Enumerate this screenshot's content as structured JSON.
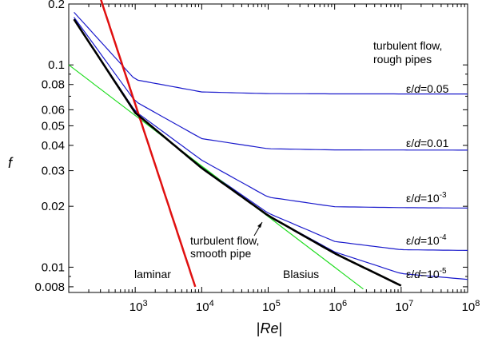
{
  "chart_data": {
    "type": "line",
    "title": "",
    "xlabel_parts": {
      "left": "|",
      "italic": "Re",
      "right": "|"
    },
    "ylabel": "f",
    "xscale": "log",
    "yscale": "log",
    "xlim": [
      100,
      100000000
    ],
    "ylim": [
      0.0075,
      0.2
    ],
    "grid": false,
    "x_tick_labels": [
      {
        "value": 1000,
        "base": "10",
        "exp": "3"
      },
      {
        "value": 10000,
        "base": "10",
        "exp": "4"
      },
      {
        "value": 100000,
        "base": "10",
        "exp": "5"
      },
      {
        "value": 1000000,
        "base": "10",
        "exp": "6"
      },
      {
        "value": 10000000,
        "base": "10",
        "exp": "7"
      },
      {
        "value": 100000000,
        "base": "10",
        "exp": "8"
      }
    ],
    "y_tick_labels": [
      {
        "value": 0.2,
        "label": "0.2"
      },
      {
        "value": 0.1,
        "label": "0.1"
      },
      {
        "value": 0.08,
        "label": "0.08"
      },
      {
        "value": 0.06,
        "label": "0.06"
      },
      {
        "value": 0.05,
        "label": "0.05"
      },
      {
        "value": 0.04,
        "label": "0.04"
      },
      {
        "value": 0.03,
        "label": "0.03"
      },
      {
        "value": 0.02,
        "label": "0.02"
      },
      {
        "value": 0.01,
        "label": "0.01"
      },
      {
        "value": 0.008,
        "label": "0.008"
      }
    ],
    "series": [
      {
        "key": "laminar",
        "color": "#e01010",
        "formula": "f = 64/Re",
        "x": [
          300,
          8000
        ],
        "y": [
          0.2133,
          0.008
        ]
      },
      {
        "key": "blasius",
        "color": "#22dd22",
        "formula": "f = 0.316 Re^-0.25",
        "x": [
          100,
          2700000
        ],
        "y": [
          0.1,
          0.0078
        ]
      },
      {
        "key": "smooth",
        "color": "#000000",
        "formula": "Colebrook, smooth",
        "x": [
          120,
          1000,
          10000,
          100000,
          1000000,
          10000000
        ],
        "y": [
          0.168,
          0.058,
          0.0309,
          0.018,
          0.0117,
          0.0081
        ]
      },
      {
        "key": "rough_0.05",
        "color": "#1a1acc",
        "x": [
          120,
          1000,
          10000,
          100000,
          1000000,
          100000000
        ],
        "y": [
          0.182,
          0.0845,
          0.0735,
          0.0721,
          0.0719,
          0.0718
        ]
      },
      {
        "key": "rough_0.01",
        "color": "#1a1acc",
        "x": [
          120,
          1000,
          10000,
          100000,
          1000000,
          100000000
        ],
        "y": [
          0.172,
          0.066,
          0.0432,
          0.0385,
          0.038,
          0.0379
        ]
      },
      {
        "key": "rough_1e-3",
        "color": "#1a1acc",
        "x": [
          120,
          1000,
          10000,
          100000,
          1000000,
          10000000,
          100000000
        ],
        "y": [
          0.168,
          0.059,
          0.0338,
          0.0222,
          0.0199,
          0.0197,
          0.0196
        ]
      },
      {
        "key": "rough_1e-4",
        "color": "#1a1acc",
        "x": [
          120,
          1000,
          10000,
          100000,
          1000000,
          10000000,
          100000000
        ],
        "y": [
          0.168,
          0.058,
          0.0312,
          0.0185,
          0.0134,
          0.0122,
          0.0121
        ]
      },
      {
        "key": "rough_1e-5",
        "color": "#1a1acc",
        "x": [
          120,
          1000,
          10000,
          100000,
          1000000,
          10000000,
          100000000
        ],
        "y": [
          0.168,
          0.058,
          0.0309,
          0.018,
          0.0119,
          0.0093,
          0.0087
        ]
      }
    ],
    "annotations": {
      "rough_title_1": "turbulent flow,",
      "rough_title_2": "rough pipes",
      "smooth_title_1": "turbulent flow,",
      "smooth_title_2": "smooth pipe",
      "laminar": "laminar",
      "blasius": "Blasius",
      "eps_prefix": "ε/",
      "eps_var": "d",
      "eps_005": "=0.05",
      "eps_001": "=0.01",
      "eps_eq10": "=10",
      "exp_3": "-3",
      "exp_4": "-4",
      "exp_5": "-5"
    }
  }
}
